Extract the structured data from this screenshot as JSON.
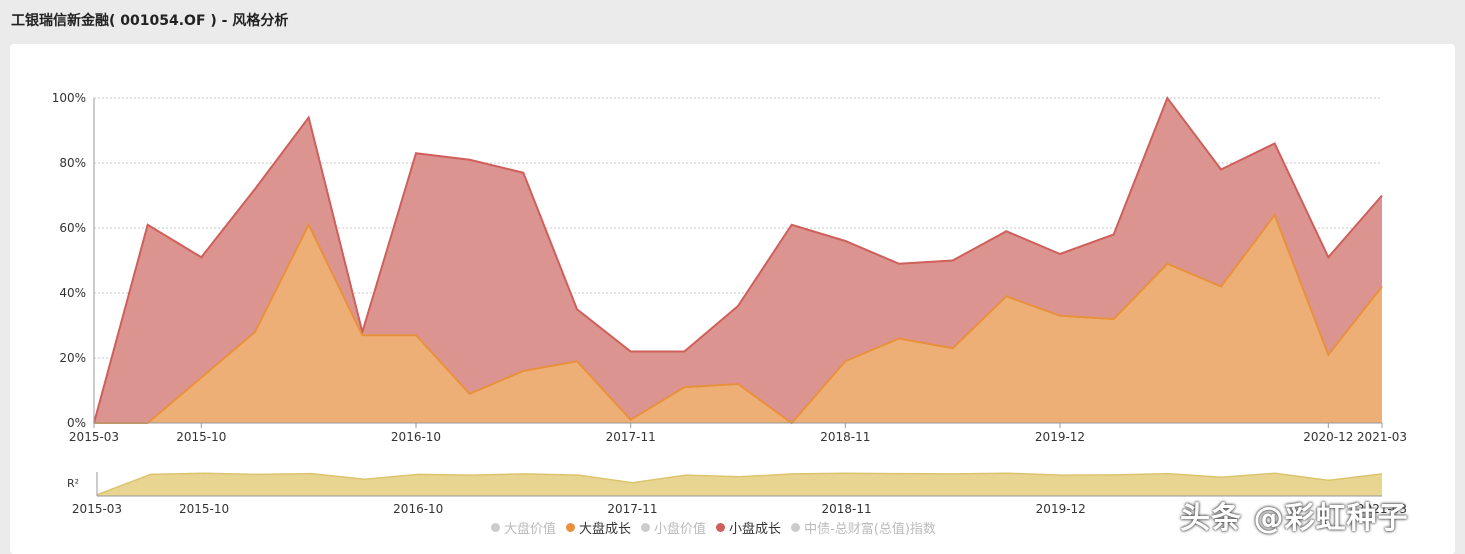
{
  "header": {
    "title": "工银瑞信新金融( 001054.OF ) - 风格分析"
  },
  "watermark": "头条 @彩虹种子",
  "colors": {
    "large_growth_fill": "#eeaf76",
    "large_growth_line": "#e8913d",
    "small_growth_fill": "#dc9491",
    "small_growth_line": "#cf5f5a",
    "r2_fill": "#e8d592",
    "r2_line": "#dcc46f",
    "legend_inactive": "#cccccc",
    "legend_text_inactive": "#bbbbbb",
    "legend_text_active": "#333333"
  },
  "legend": [
    {
      "label": "大盘价值",
      "active": false,
      "color": "#cccccc"
    },
    {
      "label": "大盘成长",
      "active": true,
      "color": "#e8913d"
    },
    {
      "label": "小盘价值",
      "active": false,
      "color": "#cccccc"
    },
    {
      "label": "小盘成长",
      "active": true,
      "color": "#cf5f5a"
    },
    {
      "label": "中债-总财富(总值)指数",
      "active": false,
      "color": "#cccccc"
    }
  ],
  "chart_data": [
    {
      "type": "area",
      "stacked": true,
      "y_ticks": [
        "0%",
        "20%",
        "40%",
        "60%",
        "80%",
        "100%"
      ],
      "ylim": [
        0,
        100
      ],
      "x_ticks": [
        "2015-03",
        "2015-10",
        "2016-10",
        "2017-11",
        "2018-11",
        "2019-12",
        "2020-12",
        "2021-03"
      ],
      "x_tick_index": [
        0,
        2,
        6,
        10,
        14,
        18,
        23,
        24
      ],
      "grid": "horizontal-dotted",
      "legend_position": "bottom",
      "series": [
        {
          "name": "大盘成长",
          "values": [
            0,
            0,
            14,
            28,
            61,
            27,
            27,
            9,
            16,
            19,
            1,
            11,
            12,
            0,
            19,
            26,
            23,
            39,
            33,
            32,
            49,
            42,
            64,
            21,
            42
          ]
        },
        {
          "name": "小盘成长",
          "values": [
            0,
            61,
            37,
            44,
            33,
            1,
            56,
            72,
            61,
            16,
            21,
            11,
            24,
            61,
            37,
            23,
            27,
            20,
            19,
            26,
            51,
            36,
            22,
            30,
            28
          ]
        }
      ]
    },
    {
      "type": "area",
      "ylabel": "R²",
      "x_ticks": [
        "2015-03",
        "2015-10",
        "2016-10",
        "2017-11",
        "2018-11",
        "2019-12",
        "2021-03"
      ],
      "x_tick_index": [
        0,
        2,
        6,
        10,
        14,
        18,
        24
      ],
      "ylim": [
        0,
        1
      ],
      "values": [
        0.05,
        0.9,
        0.95,
        0.9,
        0.93,
        0.7,
        0.9,
        0.87,
        0.92,
        0.87,
        0.55,
        0.87,
        0.8,
        0.92,
        0.95,
        0.93,
        0.92,
        0.95,
        0.87,
        0.88,
        0.93,
        0.78,
        0.95,
        0.65,
        0.92
      ]
    }
  ]
}
